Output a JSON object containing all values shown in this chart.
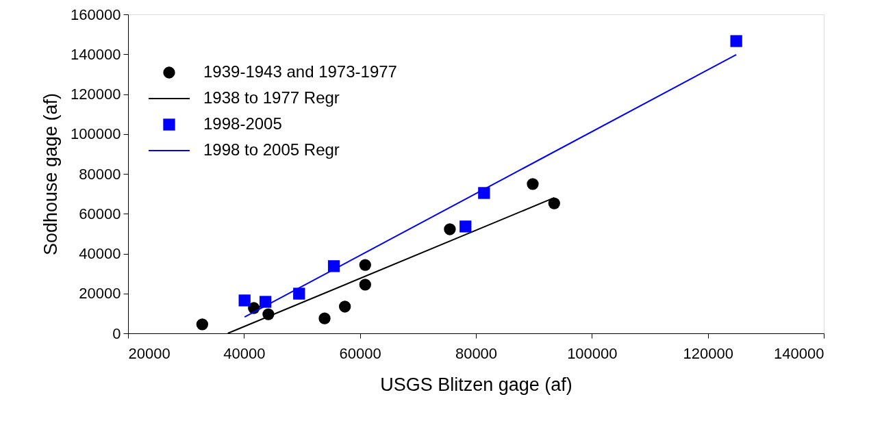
{
  "chart_data": {
    "type": "scatter",
    "xlabel": "USGS Blitzen gage (af)",
    "ylabel": "Sodhouse gage (af)",
    "xlim": [
      20000,
      140000
    ],
    "xticks": [
      20000,
      40000,
      60000,
      80000,
      100000,
      120000,
      140000
    ],
    "ylim": [
      0,
      160000
    ],
    "yticks": [
      0,
      20000,
      40000,
      60000,
      80000,
      100000,
      120000,
      140000,
      160000
    ],
    "grid": false,
    "legend": "top left",
    "series": [
      {
        "name": "1939-1943 and 1973-1977",
        "marker": "circle",
        "color": "#000000",
        "x": [
          32800,
          41700,
          44200,
          53900,
          57400,
          60900,
          60900,
          75500,
          89800,
          93500
        ],
        "values": [
          4500,
          12700,
          9600,
          7500,
          13400,
          34300,
          24400,
          52200,
          74900,
          65200
        ]
      },
      {
        "name": "1938 to 1977 Regr",
        "type": "line",
        "color": "#000000",
        "x": [
          37200,
          93500
        ],
        "values": [
          0,
          68000
        ]
      },
      {
        "name": "1998-2005",
        "marker": "square",
        "color": "#0000ff",
        "x": [
          40100,
          43700,
          49500,
          55500,
          78200,
          81400,
          124900
        ],
        "values": [
          16500,
          15800,
          19900,
          33700,
          53600,
          70400,
          146600
        ]
      },
      {
        "name": "1998 to 2005 Regr",
        "type": "line",
        "color": "#0000ff",
        "x": [
          40100,
          124900
        ],
        "values": [
          8200,
          139800
        ]
      }
    ]
  }
}
